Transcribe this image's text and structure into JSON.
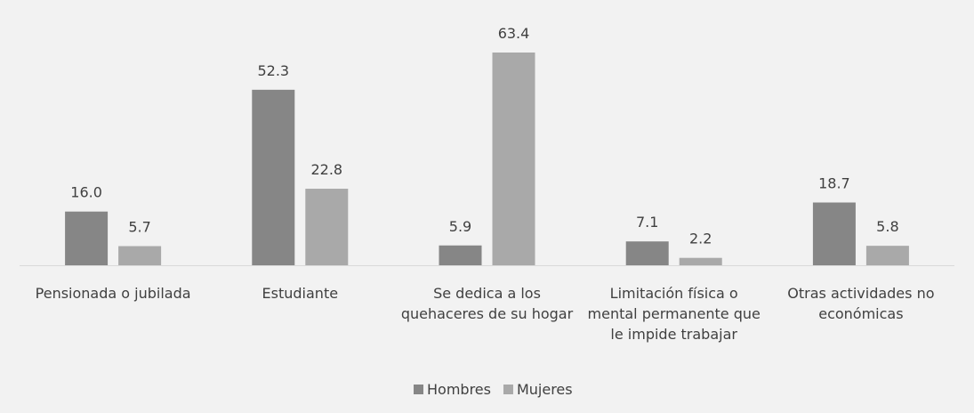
{
  "chart_data": {
    "type": "bar",
    "categories": [
      "Pensionada o jubilada",
      "Estudiante",
      "Se dedica a los quehaceres de su hogar",
      "Limitación física o mental permanente que le impide trabajar",
      "Otras actividades no económicas"
    ],
    "series": [
      {
        "name": "Hombres",
        "color": "#868686",
        "values": [
          16.0,
          52.3,
          5.9,
          7.1,
          18.7
        ],
        "value_labels": [
          "16.0",
          "52.3",
          "5.9",
          "7.1",
          "18.7"
        ]
      },
      {
        "name": "Mujeres",
        "color": "#a9a9a9",
        "values": [
          5.7,
          22.8,
          63.4,
          2.2,
          5.8
        ],
        "value_labels": [
          "5.7",
          "22.8",
          "63.4",
          "2.2",
          "5.8"
        ]
      }
    ]
  }
}
